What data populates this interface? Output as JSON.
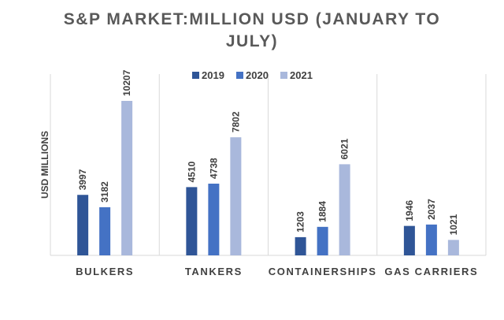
{
  "chart_data": {
    "type": "bar",
    "title_lines": [
      "S&P MARKET:MILLION USD (JANUARY TO",
      "JULY)"
    ],
    "ylabel": "USD MILLIONS",
    "xlabel": "",
    "categories": [
      "BULKERS",
      "TANKERS",
      "CONTAINERSHIPS",
      "GAS CARRIERS"
    ],
    "series": [
      {
        "name": "2019",
        "color": "#2f5597",
        "values": [
          3997,
          4510,
          1203,
          1946
        ]
      },
      {
        "name": "2020",
        "color": "#4472c4",
        "values": [
          3182,
          4738,
          1884,
          2037
        ]
      },
      {
        "name": "2021",
        "color": "#a9b8dc",
        "values": [
          10207,
          7802,
          6021,
          1021
        ]
      }
    ],
    "ylim": [
      0,
      10207
    ],
    "grid": false,
    "legend_position": "top",
    "data_labels": true
  }
}
